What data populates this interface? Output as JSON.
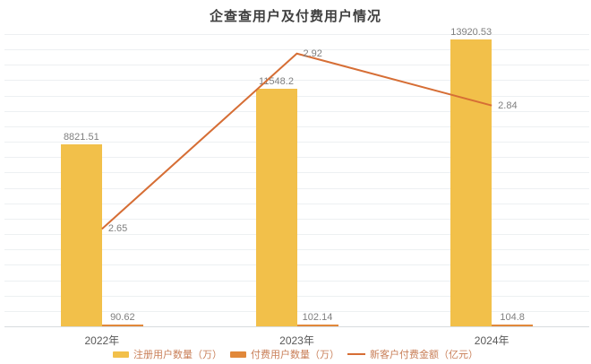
{
  "title": "企查查用户及付费用户情况",
  "colors": {
    "registered_bar": "#F2C04A",
    "paying_bar": "#E1883A",
    "line": "#D66E35",
    "grid": "#EDF0F2",
    "axis": "#D8DCDE",
    "value_label": "#7F7F7F",
    "tick_label": "#595959",
    "legend_text": "#C97F58",
    "title_text": "#3F3F3F",
    "background": "#FFFFFF"
  },
  "chart_data": {
    "type": "bar",
    "subtype": "combo-bar-line",
    "title": "企查查用户及付费用户情况",
    "categories": [
      "2022年",
      "2023年",
      "2024年"
    ],
    "series": [
      {
        "name": "注册用户数量（万）",
        "type": "bar",
        "axis": "left",
        "values": [
          8821.51,
          11548.2,
          13920.53
        ],
        "color": "#F2C04A"
      },
      {
        "name": "付费用户数量（万）",
        "type": "bar",
        "axis": "left",
        "values": [
          90.62,
          102.14,
          104.8
        ],
        "color": "#E1883A"
      },
      {
        "name": "新客户付费金额（亿元）",
        "type": "line",
        "axis": "right",
        "values": [
          2.65,
          2.92,
          2.84
        ],
        "color": "#D66E35"
      }
    ],
    "xlabel": "",
    "ylabel": "",
    "ylim_left": [
      0,
      14200
    ],
    "ylim_right": [
      2.5,
      2.95
    ],
    "grid": true,
    "legend_position": "bottom",
    "data_labels": true
  }
}
